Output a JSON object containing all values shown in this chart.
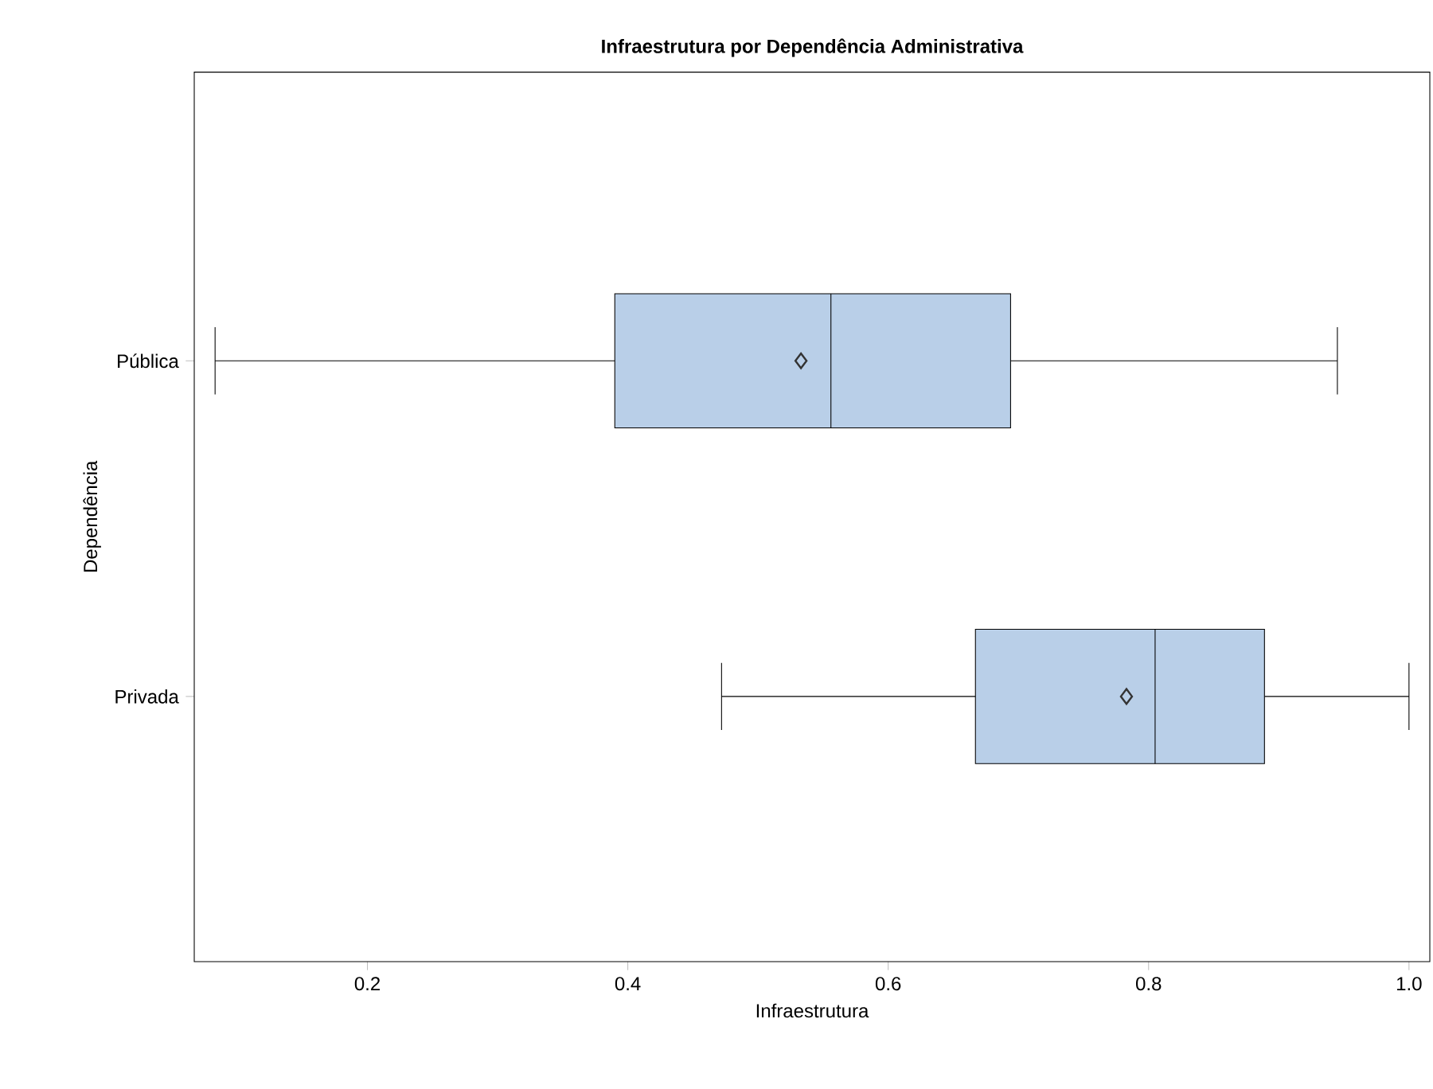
{
  "chart_data": {
    "type": "box",
    "title": "Infraestrutura por Dependência Administrativa",
    "xlabel": "Infraestrutura",
    "ylabel": "Dependência",
    "orientation": "horizontal",
    "categories": [
      "Pública",
      "Privada"
    ],
    "color": "#b9cfe8",
    "marker": "diamond",
    "xlim": [
      0.067,
      1.016
    ],
    "xticks": [
      {
        "value": 0.2,
        "label": "0.2"
      },
      {
        "value": 0.4,
        "label": "0.4"
      },
      {
        "value": 0.6,
        "label": "0.6"
      },
      {
        "value": 0.8,
        "label": "0.8"
      },
      {
        "value": 1.0,
        "label": "1.0"
      }
    ],
    "grid": false,
    "boxes": [
      {
        "low": 0.083,
        "q1": 0.39,
        "median": 0.556,
        "q3": 0.694,
        "high": 0.945,
        "mean": 0.533
      },
      {
        "low": 0.472,
        "q1": 0.667,
        "median": 0.805,
        "q3": 0.889,
        "high": 1.0,
        "mean": 0.783
      }
    ]
  }
}
